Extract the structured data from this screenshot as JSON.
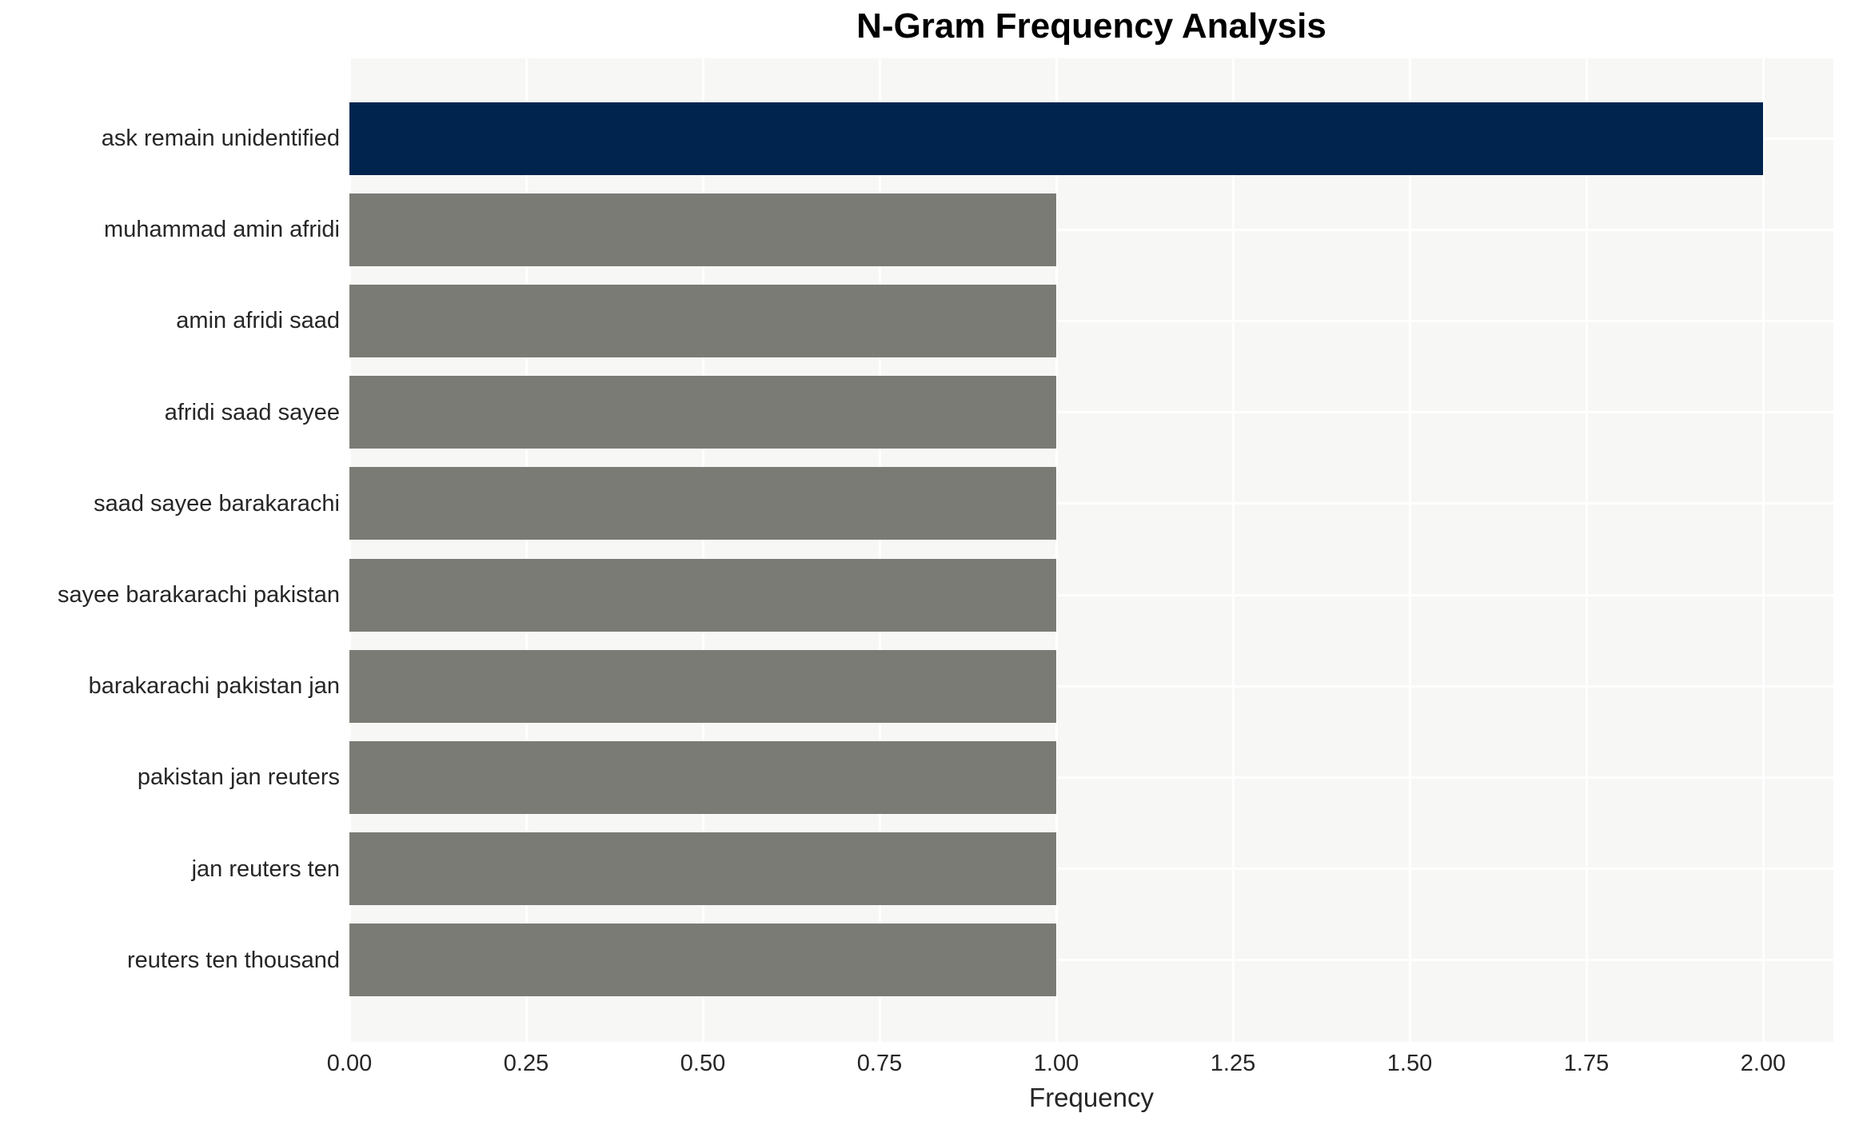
{
  "chart_data": {
    "type": "bar",
    "orientation": "horizontal",
    "title": "N-Gram Frequency Analysis",
    "xlabel": "Frequency",
    "ylabel": "",
    "categories": [
      "ask remain unidentified",
      "muhammad amin afridi",
      "amin afridi saad",
      "afridi saad sayee",
      "saad sayee barakarachi",
      "sayee barakarachi pakistan",
      "barakarachi pakistan jan",
      "pakistan jan reuters",
      "jan reuters ten",
      "reuters ten thousand"
    ],
    "values": [
      2,
      1,
      1,
      1,
      1,
      1,
      1,
      1,
      1,
      1
    ],
    "xlim": [
      0,
      2.1
    ],
    "x_tick_values": [
      0,
      0.25,
      0.5,
      0.75,
      1.0,
      1.25,
      1.5,
      1.75,
      2.0
    ],
    "x_tick_labels": [
      "0.00",
      "0.25",
      "0.50",
      "0.75",
      "1.00",
      "1.25",
      "1.50",
      "1.75",
      "2.00"
    ],
    "grid": true,
    "legend": false,
    "colors": {
      "highlight_bar": "#01244e",
      "default_bar": "#7b7b76",
      "plot_background": "#f7f7f6",
      "gridline": "#ffffff",
      "tick_text": "#262626",
      "title_text": "#000000"
    }
  }
}
